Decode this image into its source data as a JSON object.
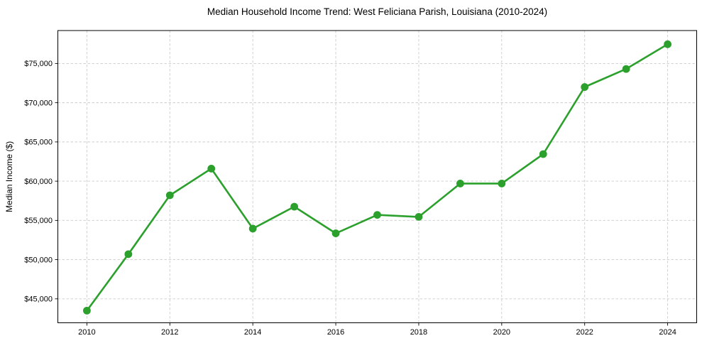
{
  "figure": {
    "background": "#ffffff",
    "spine_color": "#000000",
    "text_color": "#000000"
  },
  "chart_data": {
    "type": "line",
    "title": "Median Household Income Trend: West Feliciana Parish, Louisiana (2010-2024)",
    "xlabel": "",
    "ylabel": "Median Income ($)",
    "x": [
      2010,
      2011,
      2012,
      2013,
      2014,
      2015,
      2016,
      2017,
      2018,
      2019,
      2020,
      2021,
      2022,
      2023,
      2024
    ],
    "values": [
      43500,
      50700,
      58200,
      61600,
      53950,
      56750,
      53350,
      55700,
      55450,
      59700,
      59700,
      63450,
      72000,
      74300,
      77450
    ],
    "xlim": [
      2009.3,
      2024.7
    ],
    "ylim": [
      41950,
      79200
    ],
    "xticks": [
      2010,
      2012,
      2014,
      2016,
      2018,
      2020,
      2022,
      2024
    ],
    "xtick_labels": [
      "2010",
      "2012",
      "2014",
      "2016",
      "2018",
      "2020",
      "2022",
      "2024"
    ],
    "yticks": [
      45000,
      50000,
      55000,
      60000,
      65000,
      70000,
      75000
    ],
    "ytick_labels": [
      "$45,000",
      "$50,000",
      "$55,000",
      "$60,000",
      "$65,000",
      "$70,000",
      "$75,000"
    ],
    "grid": true,
    "grid_style": "dashed",
    "grid_color": "#cccccc",
    "line_color": "#2ca02c",
    "marker": "circle",
    "legend": false
  }
}
